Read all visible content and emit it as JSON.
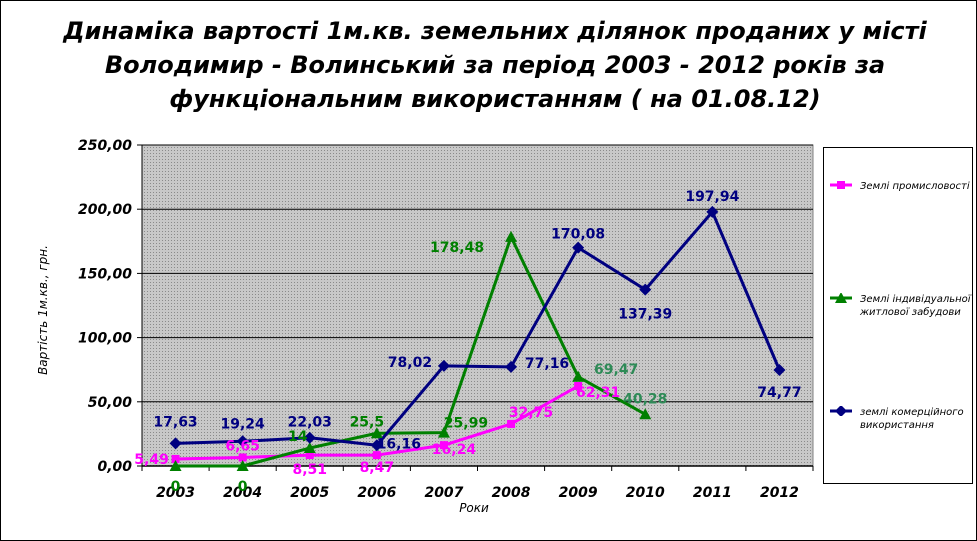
{
  "title_lines": [
    "Динаміка вартості 1м.кв. земельних ділянок проданих у місті",
    "Володимир - Волинський за період 2003 - 2012 років за",
    "функціональним використанням ( на 01.08.12)"
  ],
  "chart_data": {
    "type": "line",
    "title": "Динаміка вартості 1м.кв. земельних ділянок проданих у місті Володимир - Волинський за період 2003 - 2012 років за функціональним використанням ( на 01.08.12)",
    "xlabel": "Роки",
    "ylabel": "Вартість 1м.кв., грн.",
    "categories": [
      "2003",
      "2004",
      "2005",
      "2006",
      "2007",
      "2008",
      "2009",
      "2010",
      "2011",
      "2012"
    ],
    "y_ticks": [
      "0,00",
      "50,00",
      "100,00",
      "150,00",
      "200,00",
      "250,00"
    ],
    "ylim": [
      0,
      250
    ],
    "grid": "horizontal",
    "plot_background": "dotted-gray",
    "legend_position": "right",
    "series": [
      {
        "name": "Землі промисловості",
        "color": "#ff00ff",
        "marker": "square",
        "values": [
          5.49,
          6.65,
          8.51,
          8.47,
          16.24,
          32.75,
          62.31,
          null,
          null,
          null
        ],
        "labels": [
          "5,49",
          "6,65",
          "8,51",
          "8,47",
          "16,24",
          "32,75",
          "62,31",
          null,
          null,
          null
        ]
      },
      {
        "name": "Землі індивідуальної житлової забудови",
        "color": "#008000",
        "marker": "triangle",
        "values": [
          0,
          0,
          14,
          25.5,
          25.99,
          178.48,
          69.47,
          40.28,
          null,
          null
        ],
        "labels": [
          "0",
          "0",
          "14",
          "25,5",
          "25,99",
          "178,48",
          "69,47",
          "40,28",
          null,
          null
        ]
      },
      {
        "name": "землі комерційного використання",
        "color": "#000080",
        "marker": "diamond",
        "values": [
          17.63,
          19.24,
          22.03,
          16.16,
          78.02,
          77.16,
          170.08,
          137.39,
          197.94,
          74.77
        ],
        "labels": [
          "17,63",
          "19,24",
          "22,03",
          "16,16",
          "78,02",
          "77,16",
          "170,08",
          "137,39",
          "197,94",
          "74,77"
        ]
      }
    ]
  }
}
